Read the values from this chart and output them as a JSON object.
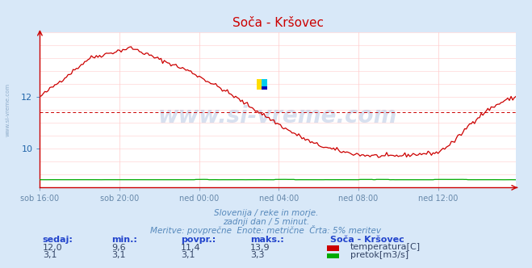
{
  "title": "Soča - Kršovec",
  "bg_color": "#d8e8f8",
  "plot_bg_color": "#ffffff",
  "grid_color": "#ffcccc",
  "axis_color": "#cc0000",
  "xlabel_color": "#6688aa",
  "title_color": "#cc0000",
  "watermark_text": "www.si-vreme.com",
  "watermark_color": "#2255aa",
  "watermark_alpha": 0.18,
  "subtitle1": "Slovenija / reke in morje.",
  "subtitle2": "zadnji dan / 5 minut.",
  "subtitle3": "Meritve: povprečne  Enote: metrične  Črta: 5% meritev",
  "subtitle_color": "#5588bb",
  "xtick_labels": [
    "sob 16:00",
    "sob 20:00",
    "ned 00:00",
    "ned 04:00",
    "ned 08:00",
    "ned 12:00"
  ],
  "xtick_positions": [
    0,
    48,
    96,
    144,
    192,
    240
  ],
  "ylim_temp": [
    8.5,
    14.5
  ],
  "yticks_temp": [
    10,
    12
  ],
  "avg_temp": 11.4,
  "temp_color": "#cc0000",
  "flow_color": "#00aa00",
  "left_label": "www.si-vreme.com",
  "left_label_color": "#7799bb",
  "total_points": 288,
  "header_color": "#2244cc",
  "value_color": "#334466",
  "table_headers": [
    "sedaj:",
    "min.:",
    "povpr.:",
    "maks.:"
  ],
  "table_row1": [
    "12,0",
    "9,6",
    "11,4",
    "13,9"
  ],
  "table_row2": [
    "3,1",
    "3,1",
    "3,1",
    "3,3"
  ],
  "legend_title": "Soča - Kršovec",
  "legend_items": [
    {
      "label": "temperatura[C]",
      "color": "#cc0000"
    },
    {
      "label": "pretok[m3/s]",
      "color": "#00aa00"
    }
  ],
  "logo_colors": [
    "#ffdd00",
    "#00ccee",
    "#0000bb"
  ],
  "temp_keypoints_t": [
    0,
    10,
    30,
    55,
    70,
    90,
    110,
    130,
    150,
    165,
    175,
    185,
    195,
    210,
    220,
    230,
    240,
    250,
    260,
    270,
    280,
    287
  ],
  "temp_keypoints_v": [
    12.0,
    12.5,
    13.5,
    13.9,
    13.5,
    13.0,
    12.3,
    11.5,
    10.7,
    10.2,
    10.0,
    9.85,
    9.75,
    9.7,
    9.75,
    9.8,
    9.85,
    10.3,
    11.0,
    11.5,
    11.85,
    12.0
  ]
}
